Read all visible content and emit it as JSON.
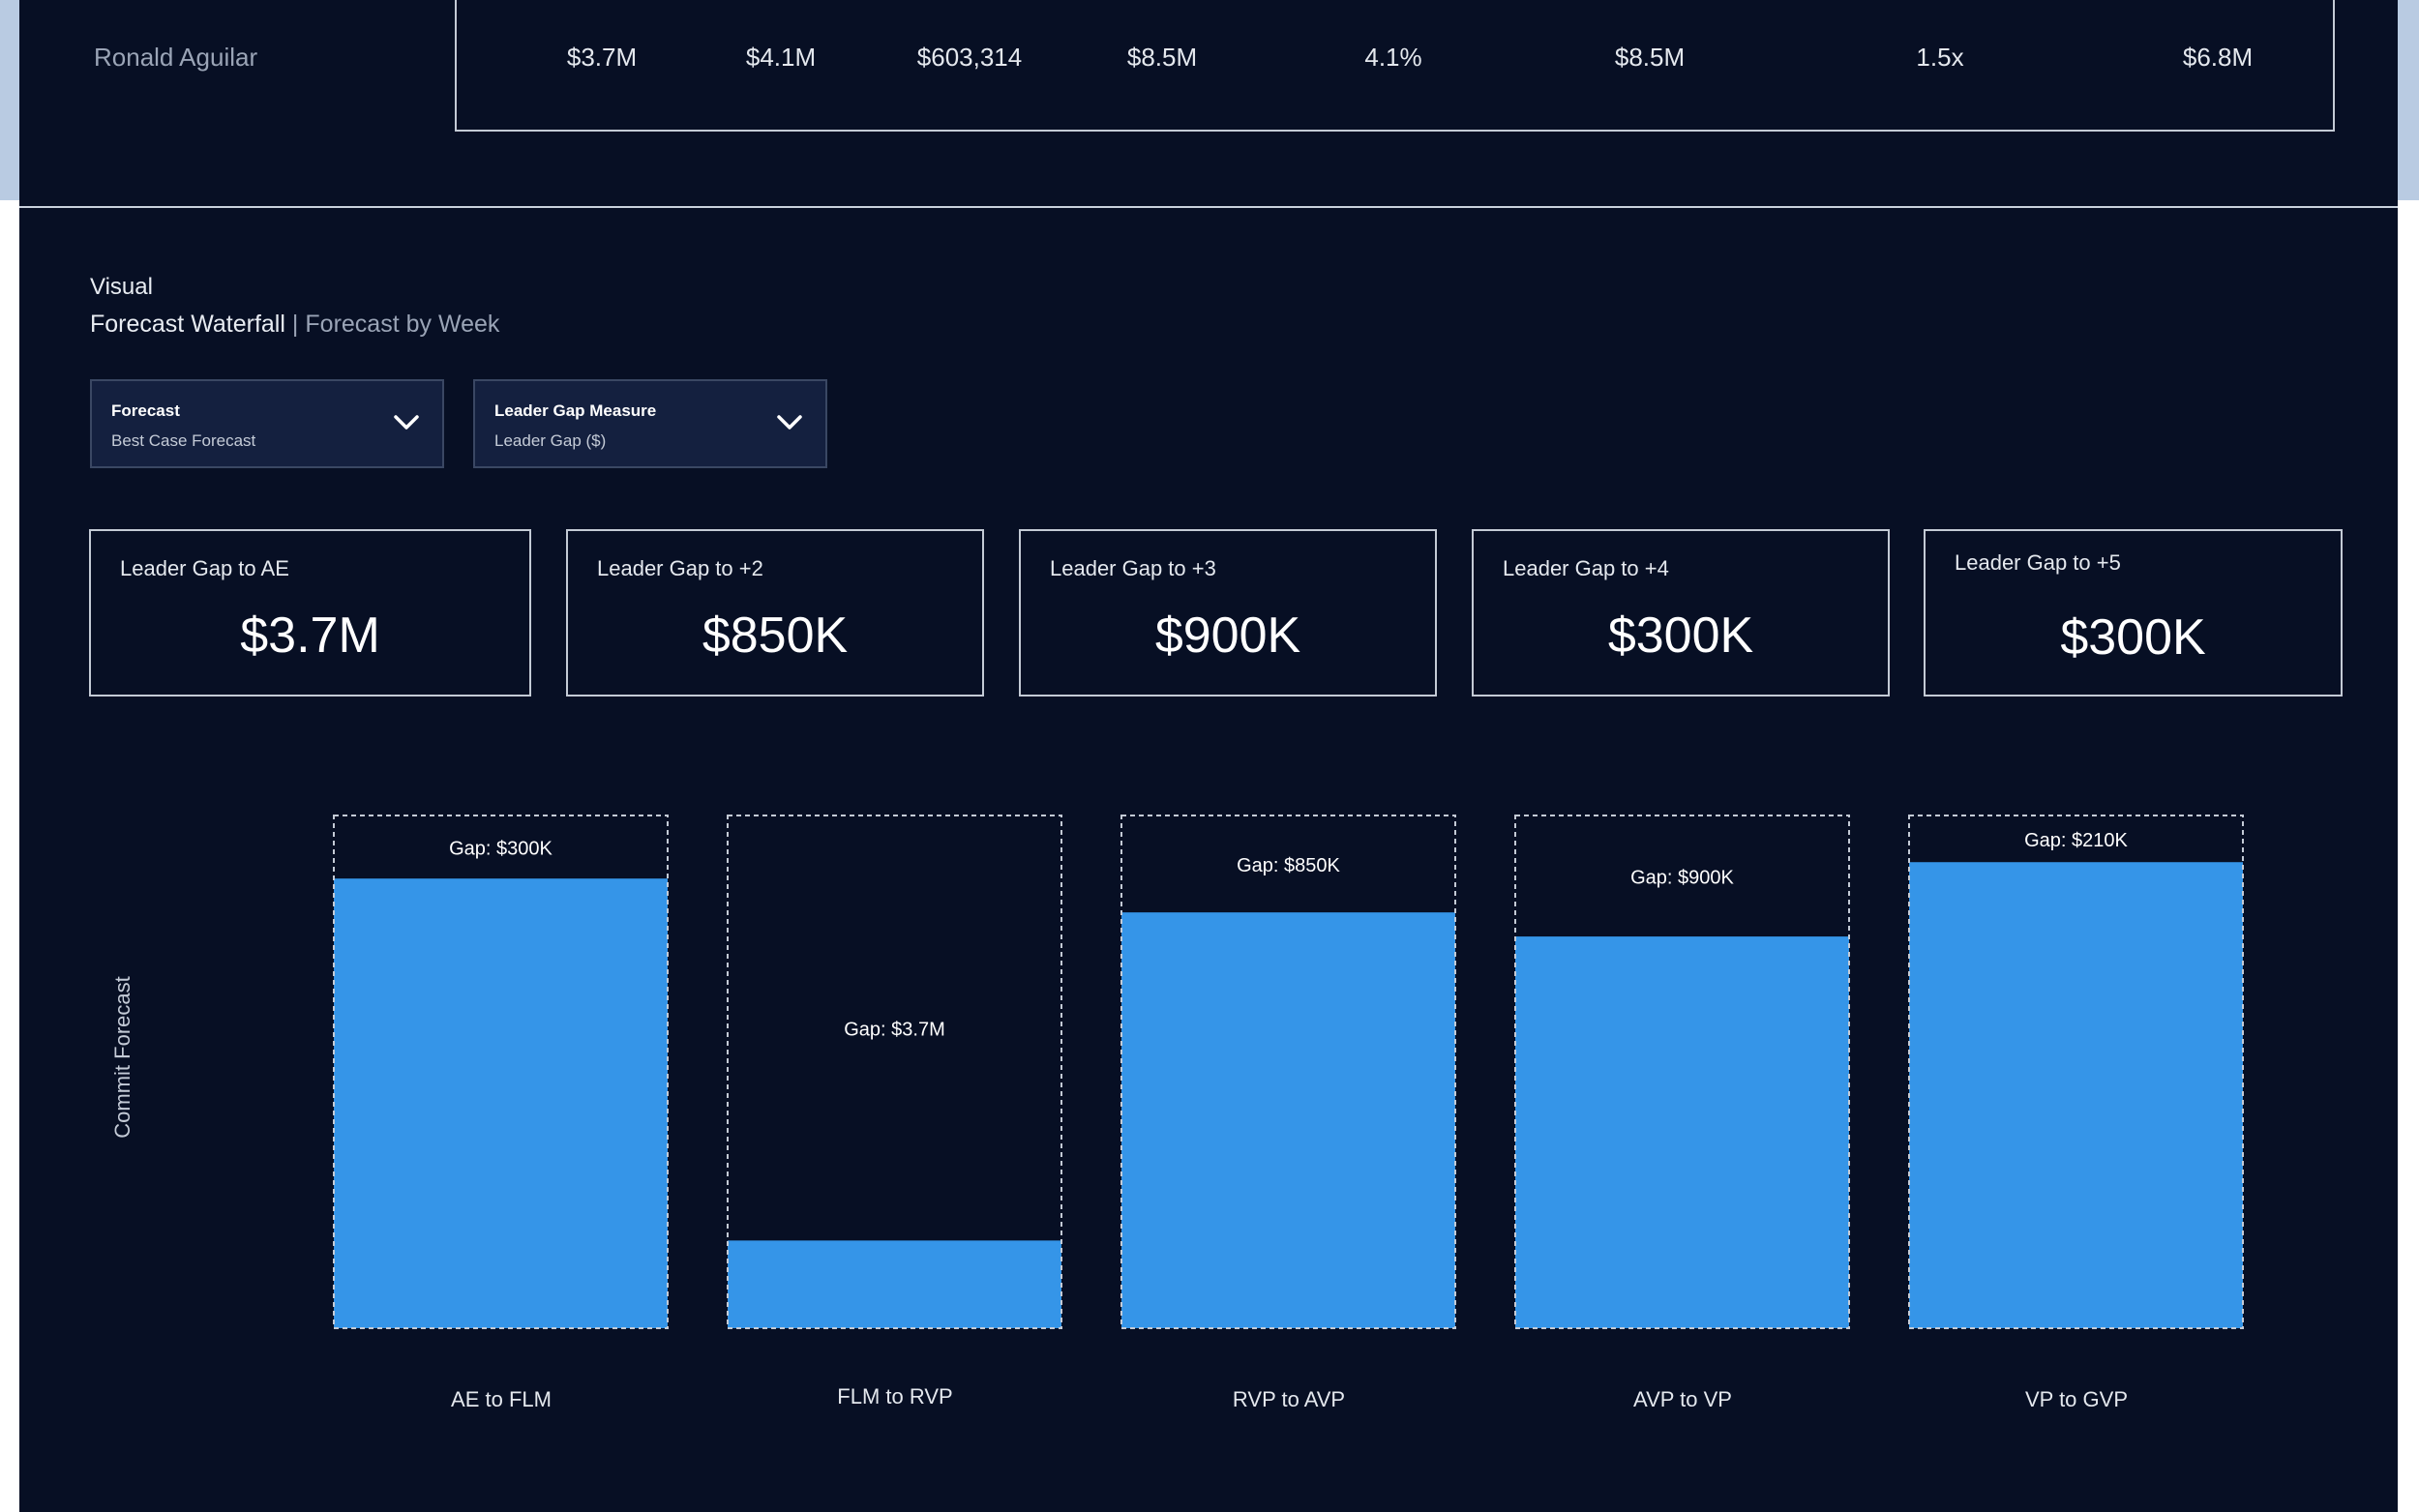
{
  "table_row": {
    "name": "Ronald Aguilar",
    "cells": [
      "$3.7M",
      "$4.1M",
      "$603,314",
      "$8.5M",
      "4.1%",
      "$8.5M",
      "1.5x",
      "$6.8M"
    ]
  },
  "visual": {
    "section_title": "Visual",
    "tab_active": "Forecast Waterfall",
    "separator": "|",
    "tab_inactive": "Forecast by Week"
  },
  "filters": {
    "forecast": {
      "label": "Forecast",
      "value": "Best Case Forecast"
    },
    "measure": {
      "label": "Leader Gap Measure",
      "value": "Leader Gap ($)"
    }
  },
  "kpis": [
    {
      "label": "Leader Gap to AE",
      "value": "$3.7M"
    },
    {
      "label": "Leader Gap to +2",
      "value": "$850K"
    },
    {
      "label": "Leader Gap to +3",
      "value": "$900K"
    },
    {
      "label": "Leader Gap to +4",
      "value": "$300K"
    },
    {
      "label": "Leader Gap to +5",
      "value": "$300K"
    }
  ],
  "chart_data": {
    "type": "bar",
    "title": "Forecast Waterfall",
    "ylabel": "Commit Forecast",
    "xlabel": "",
    "categories": [
      "AE to FLM",
      "FLM to RVP",
      "RVP to AVP",
      "AVP to VP",
      "VP to GVP"
    ],
    "series": [
      {
        "name": "Commit Forecast (share of total)",
        "values": [
          0.877,
          0.171,
          0.811,
          0.764,
          0.909
        ]
      },
      {
        "name": "Gap (share of total)",
        "values": [
          0.123,
          0.829,
          0.189,
          0.236,
          0.091
        ]
      }
    ],
    "gap_labels": [
      "Gap: $300K",
      "Gap: $3.7M",
      "Gap: $850K",
      "Gap: $900K",
      "Gap: $210K"
    ],
    "ylim": [
      0,
      1
    ],
    "colors": {
      "bar": "#3595e8",
      "gap_outline": "#c3cad5",
      "background": "#070f24"
    }
  }
}
